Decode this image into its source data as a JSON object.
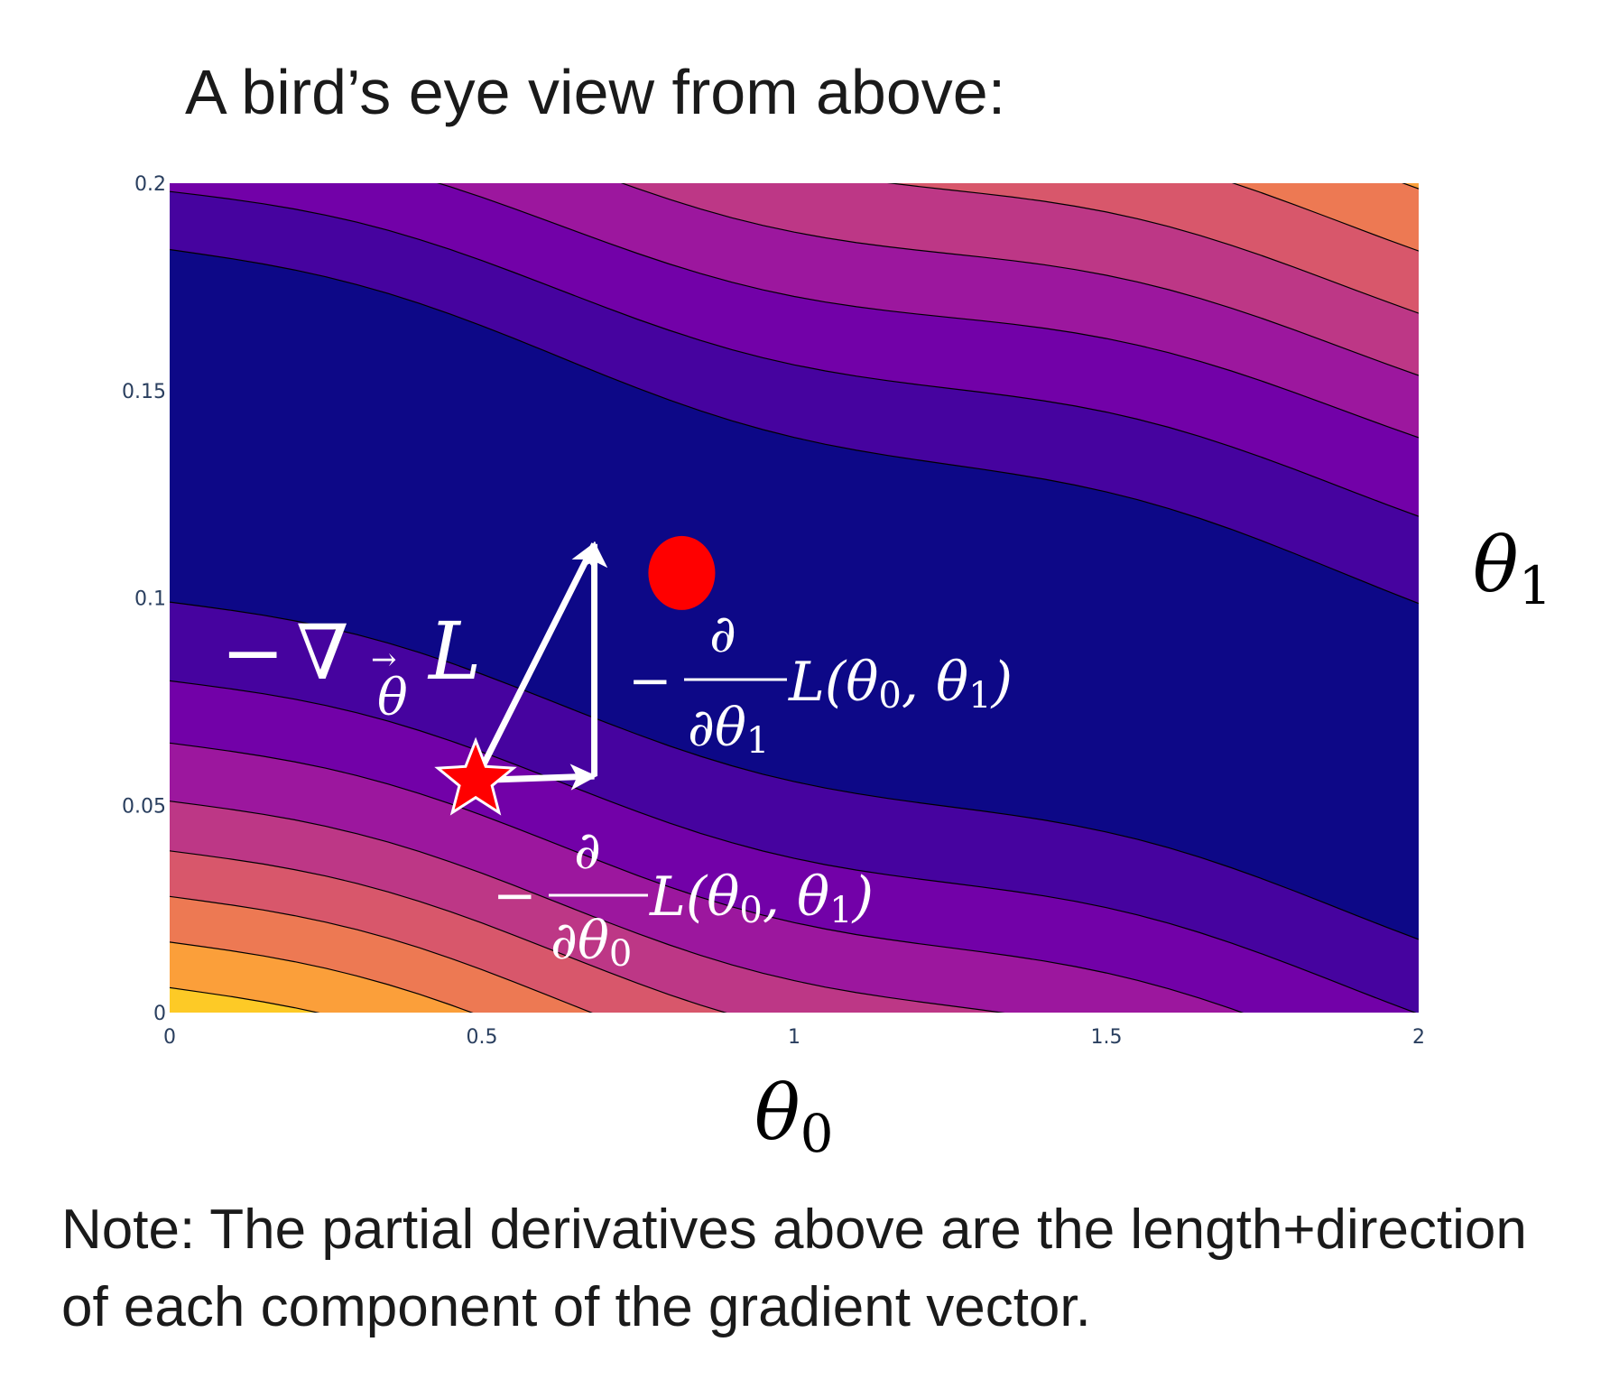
{
  "title": "A bird’s eye view from above:",
  "note": {
    "line1": "Note: The partial derivatives above are the length+direction",
    "line2": "of each component of the gradient vector."
  },
  "chart_data": {
    "type": "contour",
    "xlabel": "θ0",
    "ylabel": "θ1",
    "xlim": [
      0,
      2
    ],
    "ylim": [
      0,
      0.2
    ],
    "x_ticks": [
      {
        "value": 0,
        "label": "0"
      },
      {
        "value": 0.5,
        "label": "0.5"
      },
      {
        "value": 1,
        "label": "1"
      },
      {
        "value": 1.5,
        "label": "1.5"
      },
      {
        "value": 2,
        "label": "2"
      }
    ],
    "y_ticks": [
      {
        "value": 0,
        "label": "0"
      },
      {
        "value": 0.05,
        "label": "0.05"
      },
      {
        "value": 0.1,
        "label": "0.1"
      },
      {
        "value": 0.15,
        "label": "0.15"
      },
      {
        "value": 0.2,
        "label": "0.2"
      }
    ],
    "colorscale": [
      "#0d0887",
      "#46039f",
      "#7201a8",
      "#9c179e",
      "#bd3786",
      "#d8576b",
      "#ed7953",
      "#fb9f3a",
      "#fdca26",
      "#f0f921"
    ],
    "contour_lines": "black",
    "markers": {
      "current_point": {
        "x": 0.49,
        "y": 0.056,
        "symbol": "star",
        "color": "#ff0000"
      },
      "minimum": {
        "x": 0.82,
        "y": 0.106,
        "symbol": "circle",
        "color": "#ff0000"
      }
    },
    "arrows": {
      "gradient": {
        "from": [
          0.49,
          0.056
        ],
        "to": [
          0.68,
          0.113
        ]
      },
      "d_theta0": {
        "from": [
          0.49,
          0.056
        ],
        "to": [
          0.68,
          0.057
        ]
      },
      "d_theta1": {
        "from": [
          0.68,
          0.057
        ],
        "to": [
          0.68,
          0.113
        ]
      }
    },
    "annotations": {
      "gradient": {
        "minus": "−",
        "nabla": "∇",
        "sub": "θ",
        "vec": "→",
        "L": "L"
      },
      "d_theta1": {
        "minus": "−",
        "num": "∂",
        "den": "∂θ",
        "den_sub": "1",
        "fn_open": "L(θ",
        "sub0": "0",
        "mid": ", θ",
        "sub1": "1",
        "close": ")"
      },
      "d_theta0": {
        "minus": "−",
        "num": "∂",
        "den": "∂θ",
        "den_sub": "0",
        "fn_open": "L(θ",
        "sub0": "0",
        "mid": ", θ",
        "sub1": "1",
        "close": ")"
      }
    }
  }
}
